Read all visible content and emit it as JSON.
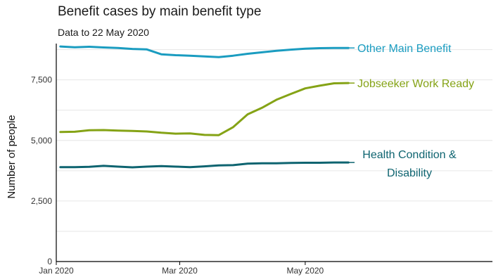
{
  "chart_data": {
    "type": "line",
    "title": "Benefit cases by main benefit type",
    "subtitle": "Data to 22 May 2020",
    "xlabel": "",
    "ylabel": "Number of people",
    "ylim": [
      0,
      9000
    ],
    "yticks": [
      0,
      2500,
      5000,
      7500
    ],
    "ytick_labels": [
      "0",
      "2,500",
      "5,000",
      "7,500"
    ],
    "xlim": [
      "2020-01-01",
      "2020-07-31"
    ],
    "xticks": [
      "2020-01-01",
      "2020-03-01",
      "2020-05-01"
    ],
    "xtick_labels": [
      "Jan 2020",
      "Mar 2020",
      "May 2020"
    ],
    "grid": true,
    "x": [
      "2020-01-03",
      "2020-01-10",
      "2020-01-17",
      "2020-01-24",
      "2020-01-31",
      "2020-02-07",
      "2020-02-14",
      "2020-02-21",
      "2020-02-28",
      "2020-03-06",
      "2020-03-13",
      "2020-03-20",
      "2020-03-27",
      "2020-04-03",
      "2020-04-10",
      "2020-04-17",
      "2020-04-24",
      "2020-05-01",
      "2020-05-08",
      "2020-05-15",
      "2020-05-22"
    ],
    "series": [
      {
        "name": "Other Main Benefit",
        "color": "#1a9cc0",
        "values": [
          8880,
          8850,
          8870,
          8840,
          8820,
          8780,
          8760,
          8560,
          8520,
          8500,
          8470,
          8440,
          8500,
          8580,
          8640,
          8700,
          8750,
          8790,
          8810,
          8820,
          8820
        ],
        "label_lines": [
          "Other Main Benefit"
        ]
      },
      {
        "name": "Jobseeker Work Ready",
        "color": "#85a316",
        "values": [
          5350,
          5360,
          5420,
          5430,
          5410,
          5390,
          5370,
          5320,
          5280,
          5290,
          5230,
          5220,
          5550,
          6080,
          6350,
          6680,
          6920,
          7150,
          7260,
          7360,
          7370
        ],
        "label_lines": [
          "Jobseeker Work Ready"
        ]
      },
      {
        "name": "Health Condition & Disability",
        "color": "#0e6470",
        "values": [
          3900,
          3900,
          3910,
          3950,
          3920,
          3890,
          3920,
          3940,
          3920,
          3900,
          3930,
          3970,
          3980,
          4040,
          4060,
          4060,
          4070,
          4080,
          4080,
          4090,
          4090
        ],
        "label_lines": [
          "Health Condition &",
          "Disability"
        ]
      }
    ]
  }
}
